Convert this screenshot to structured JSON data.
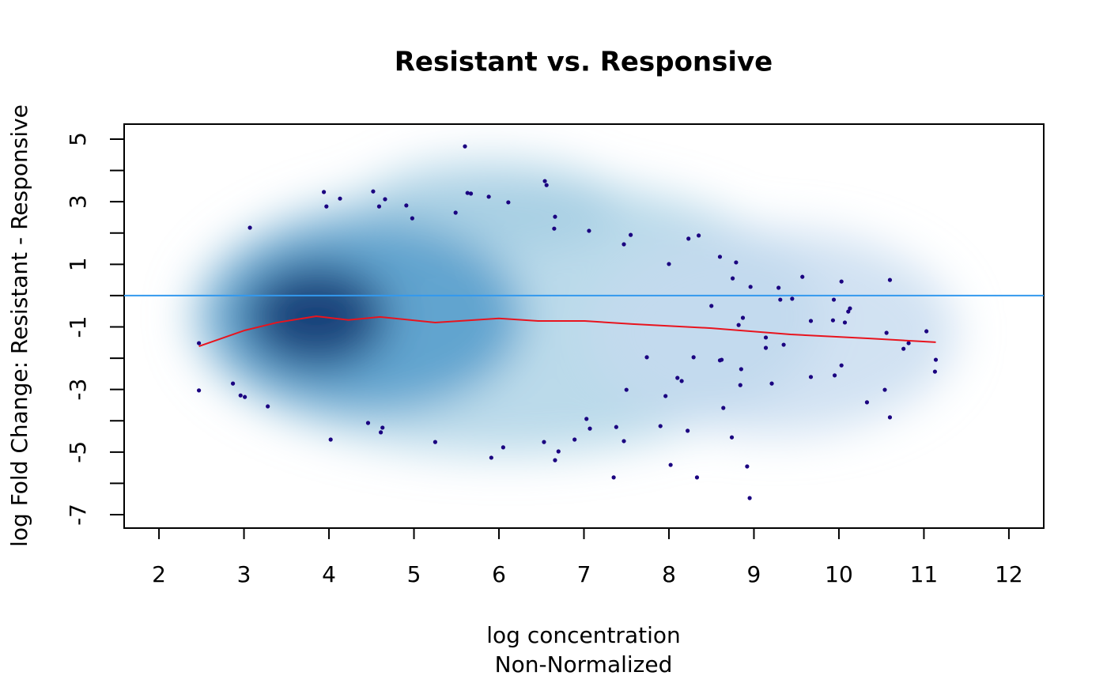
{
  "chart_data": {
    "type": "scatter",
    "title": "Resistant vs. Responsive",
    "x_label": "log concentration",
    "subtitle": "Non-Normalized",
    "y_label": "log Fold Change: Resistant - Responsive",
    "xlim": [
      1.59,
      12.41
    ],
    "ylim": [
      -7.43,
      5.48
    ],
    "xticks": [
      2,
      3,
      4,
      5,
      6,
      7,
      8,
      9,
      10,
      11,
      12
    ],
    "yticks": [
      5,
      3,
      1,
      -1,
      -3,
      -5,
      -7
    ],
    "yticks_minor": [
      4,
      2,
      0,
      -2,
      -4,
      -6
    ],
    "reference_line": 0,
    "reference_color": "#3399ee",
    "point_color": "#1a0080",
    "x": [
      5.6,
      3.94,
      3.97,
      4.13,
      4.52,
      4.59,
      4.66,
      4.91,
      4.98,
      3.07,
      5.49,
      5.63,
      5.67,
      5.88,
      6.11,
      6.54,
      6.56,
      6.66,
      6.65,
      7.06,
      7.47,
      7.55,
      8.0,
      8.23,
      8.35,
      8.6,
      8.79,
      8.75,
      8.96,
      9.29,
      9.31,
      9.45,
      9.57,
      9.94,
      10.03,
      10.6,
      8.5,
      8.87,
      8.82,
      9.67,
      9.93,
      10.07,
      10.13,
      10.11,
      9.14,
      9.14,
      9.35,
      10.56,
      11.03,
      10.82,
      10.76,
      11.14,
      11.13,
      10.03,
      9.95,
      9.67,
      9.21,
      8.85,
      8.84,
      8.6,
      8.62,
      8.29,
      8.1,
      8.15,
      7.74,
      7.5,
      7.96,
      8.64,
      10.54,
      10.33,
      10.6,
      7.03,
      7.07,
      6.89,
      7.38,
      7.47,
      7.9,
      8.22,
      8.74,
      8.02,
      8.33,
      8.92,
      8.95,
      7.35,
      6.7,
      6.66,
      6.53,
      6.05,
      5.91,
      5.25,
      4.46,
      4.63,
      4.61,
      4.02,
      3.28,
      3.01,
      2.96,
      2.87,
      2.47,
      2.47
    ],
    "values": [
      4.77,
      3.31,
      2.85,
      3.1,
      3.33,
      2.85,
      3.08,
      2.88,
      2.47,
      2.17,
      2.65,
      3.28,
      3.26,
      3.16,
      2.98,
      3.66,
      3.53,
      2.52,
      2.14,
      2.07,
      1.64,
      1.94,
      1.01,
      1.82,
      1.92,
      1.24,
      1.06,
      0.55,
      0.28,
      0.25,
      -0.13,
      -0.1,
      0.6,
      -0.13,
      0.45,
      0.5,
      -0.33,
      -0.71,
      -0.94,
      -0.81,
      -0.79,
      -0.86,
      -0.41,
      -0.51,
      -1.34,
      -1.67,
      -1.57,
      -1.19,
      -1.14,
      -1.52,
      -1.7,
      -2.05,
      -2.43,
      -2.23,
      -2.55,
      -2.6,
      -2.81,
      -2.35,
      -2.86,
      -2.07,
      -2.05,
      -1.97,
      -2.63,
      -2.73,
      -1.97,
      -3.01,
      -3.21,
      -3.59,
      -3.01,
      -3.41,
      -3.89,
      -3.94,
      -4.25,
      -4.6,
      -4.2,
      -4.65,
      -4.17,
      -4.32,
      -4.53,
      -5.41,
      -5.81,
      -5.46,
      -6.47,
      -5.81,
      -4.98,
      -5.26,
      -4.68,
      -4.85,
      -5.18,
      -4.68,
      -4.07,
      -4.22,
      -4.37,
      -4.6,
      -3.54,
      -3.24,
      -3.19,
      -2.81,
      -3.03,
      -1.52
    ],
    "fit": {
      "color": "#e8141e",
      "x": [
        2.47,
        3.01,
        3.39,
        3.85,
        4.23,
        4.6,
        5.25,
        6.0,
        6.46,
        7.01,
        7.57,
        8.5,
        9.43,
        10.36,
        11.14
      ],
      "values": [
        -1.62,
        -1.11,
        -0.86,
        -0.66,
        -0.78,
        -0.68,
        -0.86,
        -0.73,
        -0.81,
        -0.81,
        -0.91,
        -1.04,
        -1.24,
        -1.37,
        -1.49
      ]
    }
  }
}
